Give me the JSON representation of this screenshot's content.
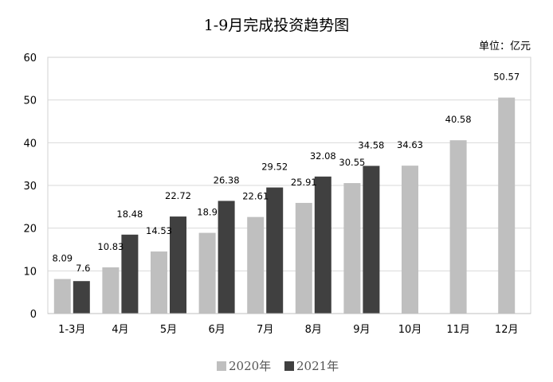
{
  "chart_data": {
    "type": "bar",
    "title": "1-9月完成投资趋势图",
    "unit_label": "单位：亿元",
    "categories": [
      "1-3月",
      "4月",
      "5月",
      "6月",
      "7月",
      "8月",
      "9月",
      "10月",
      "11月",
      "12月"
    ],
    "series": [
      {
        "name": "2020年",
        "color": "#bfbfbf",
        "values": [
          8.09,
          10.83,
          14.53,
          18.9,
          22.61,
          25.91,
          30.55,
          34.63,
          40.58,
          50.57
        ],
        "labels": [
          "8.09",
          "10.83",
          "14.53",
          "18.9",
          "22.61",
          "25.91",
          "30.55",
          "34.63",
          "40.58",
          "50.57"
        ]
      },
      {
        "name": "2021年",
        "color": "#404040",
        "values": [
          7.6,
          18.48,
          22.72,
          26.38,
          29.52,
          32.08,
          34.58,
          null,
          null,
          null
        ],
        "labels": [
          "7.6",
          "18.48",
          "22.72",
          "26.38",
          "29.52",
          "32.08",
          "34.58",
          null,
          null,
          null
        ]
      }
    ],
    "ylim": [
      0,
      60
    ],
    "yticks": [
      0,
      10,
      20,
      30,
      40,
      50,
      60
    ],
    "grid": true,
    "legend": "bottom"
  }
}
